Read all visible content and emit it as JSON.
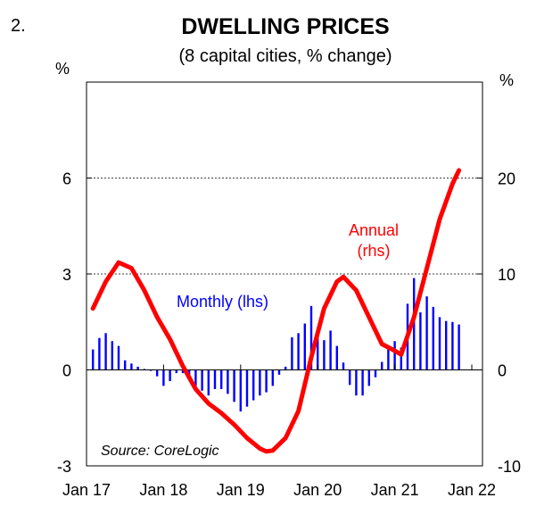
{
  "figure_number": "2.",
  "chart_data": {
    "type": "bar+line",
    "title": "DWELLING PRICES",
    "subtitle": "(8 capital cities, % change)",
    "left_axis": {
      "unit": "%",
      "ylim": [
        -3,
        9
      ],
      "ticks": [
        -3,
        0,
        3,
        6
      ]
    },
    "right_axis": {
      "unit": "%",
      "ylim": [
        -10,
        30
      ],
      "ticks": [
        -10,
        0,
        10,
        20
      ]
    },
    "x_ticks": [
      "Jan 17",
      "Jan 18",
      "Jan 19",
      "Jan 20",
      "Jan 21",
      "Jan 22"
    ],
    "xlim": [
      "2017-01",
      "2022-01"
    ],
    "gridlines": [
      3,
      6
    ],
    "colors": {
      "monthly": "#0000ff",
      "annual": "#ff0000"
    },
    "source": "Source: CoreLogic",
    "series": [
      {
        "name": "Monthly (lhs)",
        "type": "bar",
        "axis": "left",
        "start": "2017-02",
        "values": [
          0.64,
          1.0,
          1.15,
          0.9,
          0.75,
          0.3,
          0.2,
          0.1,
          0.03,
          -0.03,
          -0.2,
          -0.5,
          -0.35,
          -0.1,
          -0.1,
          -0.3,
          -0.5,
          -0.65,
          -0.8,
          -0.6,
          -0.6,
          -0.75,
          -1.0,
          -1.3,
          -1.15,
          -0.95,
          -0.8,
          -0.7,
          -0.5,
          -0.15,
          0.1,
          1.02,
          1.15,
          1.45,
          2.0,
          1.25,
          0.93,
          1.23,
          0.75,
          0.23,
          -0.47,
          -0.8,
          -0.8,
          -0.5,
          -0.23,
          0.25,
          0.7,
          0.9,
          0.7,
          2.07,
          2.87,
          1.8,
          2.3,
          1.97,
          1.65,
          1.53,
          1.5,
          1.42
        ]
      },
      {
        "name": "Annual",
        "label_lines": [
          "Annual",
          "(rhs)"
        ],
        "type": "line",
        "axis": "right",
        "points": [
          [
            "2017-02",
            6.4
          ],
          [
            "2017-04",
            9.2
          ],
          [
            "2017-06",
            11.2
          ],
          [
            "2017-08",
            10.6
          ],
          [
            "2017-10",
            8.3
          ],
          [
            "2017-12",
            5.5
          ],
          [
            "2018-02",
            3.2
          ],
          [
            "2018-04",
            0.4
          ],
          [
            "2018-06",
            -2.0
          ],
          [
            "2018-08",
            -3.5
          ],
          [
            "2018-10",
            -4.5
          ],
          [
            "2018-12",
            -5.7
          ],
          [
            "2019-02",
            -7.1
          ],
          [
            "2019-04",
            -8.2
          ],
          [
            "2019-05",
            -8.5
          ],
          [
            "2019-06",
            -8.4
          ],
          [
            "2019-08",
            -7.1
          ],
          [
            "2019-10",
            -4.3
          ],
          [
            "2019-12",
            1.3
          ],
          [
            "2020-02",
            6.4
          ],
          [
            "2020-04",
            9.2
          ],
          [
            "2020-05",
            9.7
          ],
          [
            "2020-07",
            8.3
          ],
          [
            "2020-09",
            5.5
          ],
          [
            "2020-11",
            2.7
          ],
          [
            "2021-01",
            2.0
          ],
          [
            "2021-02",
            1.6
          ],
          [
            "2021-04",
            5.5
          ],
          [
            "2021-06",
            10.6
          ],
          [
            "2021-08",
            15.7
          ],
          [
            "2021-10",
            19.4
          ],
          [
            "2021-11",
            20.8
          ]
        ]
      }
    ]
  }
}
